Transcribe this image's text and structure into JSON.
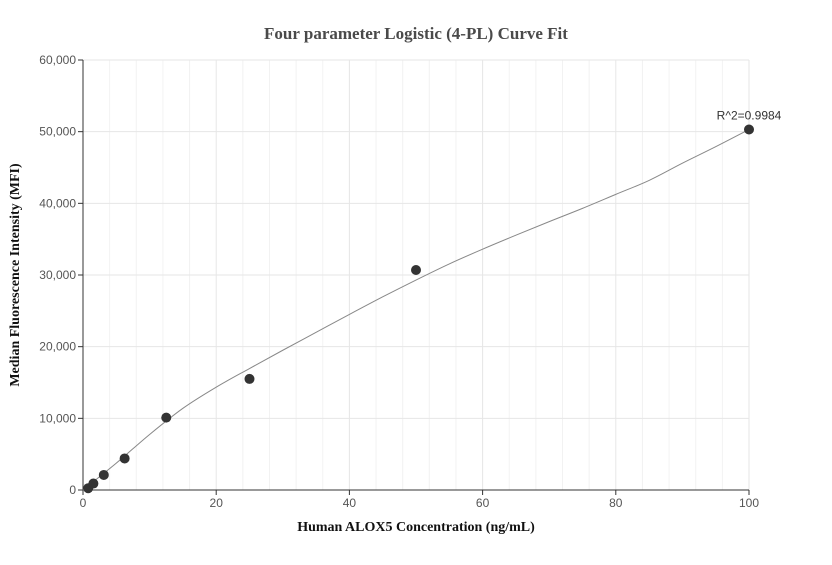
{
  "chart_data": {
    "type": "scatter",
    "title": "Four parameter Logistic (4-PL) Curve Fit",
    "xlabel": "Human ALOX5 Concentration (ng/mL)",
    "ylabel": "Median Fluorescence Intensity (MFI)",
    "xlim": [
      0,
      100
    ],
    "ylim": [
      0,
      60000
    ],
    "x_ticks": [
      0,
      20,
      40,
      60,
      80,
      100
    ],
    "x_tick_labels": [
      "0",
      "20",
      "40",
      "60",
      "80",
      "100"
    ],
    "y_ticks": [
      0,
      10000,
      20000,
      30000,
      40000,
      50000,
      60000
    ],
    "y_tick_labels": [
      "0",
      "10,000",
      "20,000",
      "30,000",
      "40,000",
      "50,000",
      "60,000"
    ],
    "grid": true,
    "points": {
      "x": [
        0.78,
        1.56,
        3.125,
        6.25,
        12.5,
        25,
        50,
        100
      ],
      "y": [
        250,
        900,
        2100,
        4400,
        10100,
        15500,
        30700,
        50300
      ]
    },
    "fit_curve": {
      "x": [
        0,
        5,
        10,
        15,
        20,
        25,
        30,
        35,
        40,
        45,
        50,
        55,
        60,
        65,
        70,
        75,
        80,
        85,
        90,
        95,
        100
      ],
      "y": [
        0,
        3750,
        7750,
        11400,
        14350,
        16950,
        19500,
        22000,
        24500,
        26950,
        29300,
        31550,
        33600,
        35550,
        37450,
        39300,
        41250,
        43200,
        45600,
        47900,
        50300
      ]
    },
    "annotation": "R^2=0.9984",
    "colors": {
      "marker": "#333333",
      "curve": "#888888",
      "grid": "#e6e6e6",
      "minor_grid": "#f2f2f2",
      "axis": "#333333"
    }
  }
}
